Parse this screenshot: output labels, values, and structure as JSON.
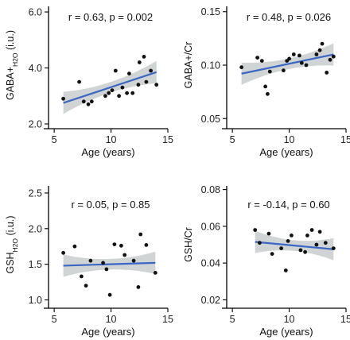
{
  "chart_data": [
    {
      "type": "scatter",
      "stat": "r = 0.63, p = 0.002",
      "xlabel": "Age (years)",
      "ylabel": "GABA+H2O (i.u.)",
      "ylabel_parts": {
        "main": "GABA+",
        "sub": "H2O",
        "unit": " (i.u.)"
      },
      "xlim": [
        4.5,
        15
      ],
      "ylim": [
        2.0,
        6.2
      ],
      "xticks": [
        5,
        10,
        15
      ],
      "yticks": [
        2.0,
        4.0,
        6.0
      ],
      "ytick_labels": [
        "2.0",
        "4.0",
        "6.0"
      ],
      "x": [
        5.8,
        7.2,
        7.6,
        8.0,
        8.3,
        9.5,
        9.8,
        10.1,
        10.4,
        10.7,
        11.0,
        11.4,
        11.6,
        11.9,
        12.4,
        12.5,
        12.9,
        13.1,
        13.5,
        14.0
      ],
      "y": [
        2.9,
        3.5,
        2.8,
        2.7,
        2.8,
        3.0,
        3.1,
        3.2,
        3.9,
        3.0,
        3.3,
        3.1,
        3.8,
        3.1,
        3.4,
        4.2,
        4.4,
        3.5,
        3.9,
        3.4
      ],
      "fit": [
        2.75,
        3.85
      ]
    },
    {
      "type": "scatter",
      "stat": "r = 0.48, p = 0.026",
      "xlabel": "Age (years)",
      "ylabel": "GABA+/Cr",
      "ylabel_parts": {
        "main": "GABA+/Cr",
        "sub": "",
        "unit": ""
      },
      "xlim": [
        4.5,
        15
      ],
      "ylim": [
        0.045,
        0.155
      ],
      "xticks": [
        5,
        10,
        15
      ],
      "yticks": [
        0.05,
        0.1,
        0.15
      ],
      "ytick_labels": [
        "0.05",
        "0.10",
        "0.15"
      ],
      "x": [
        5.8,
        7.2,
        7.6,
        7.9,
        8.1,
        8.3,
        9.5,
        9.8,
        10.0,
        10.4,
        10.9,
        11.1,
        11.5,
        12.4,
        12.7,
        12.9,
        13.3,
        13.6,
        13.9
      ],
      "y": [
        0.098,
        0.107,
        0.104,
        0.08,
        0.073,
        0.094,
        0.095,
        0.104,
        0.106,
        0.11,
        0.109,
        0.102,
        0.1,
        0.11,
        0.114,
        0.12,
        0.093,
        0.105,
        0.108
      ],
      "fit": [
        0.092,
        0.11
      ]
    },
    {
      "type": "scatter",
      "stat": "r = 0.05, p = 0.85",
      "xlabel": "Age (years)",
      "ylabel": "GSHH2O (i.u.)",
      "ylabel_parts": {
        "main": "GSH",
        "sub": "H2O",
        "unit": " (i.u.)"
      },
      "xlim": [
        4.5,
        15
      ],
      "ylim": [
        0.95,
        2.6
      ],
      "xticks": [
        5,
        10,
        15
      ],
      "yticks": [
        1.0,
        1.5,
        2.0,
        2.5
      ],
      "ytick_labels": [
        "1.0",
        "1.5",
        "2.0",
        "2.5"
      ],
      "x": [
        5.8,
        6.8,
        7.4,
        7.8,
        8.2,
        9.3,
        9.6,
        9.9,
        10.3,
        10.9,
        11.2,
        12.0,
        12.4,
        12.6,
        13.1,
        13.9
      ],
      "y": [
        1.66,
        1.75,
        1.33,
        1.2,
        1.55,
        1.52,
        1.43,
        1.07,
        1.78,
        1.76,
        1.63,
        1.55,
        1.18,
        1.92,
        1.77,
        1.38
      ],
      "fit": [
        1.48,
        1.52
      ]
    },
    {
      "type": "scatter",
      "stat": "r = -0.14, p = 0.60",
      "xlabel": "Age (years)",
      "ylabel": "GSH/Cr",
      "ylabel_parts": {
        "main": "GSH/Cr",
        "sub": "",
        "unit": ""
      },
      "xlim": [
        4.5,
        15
      ],
      "ylim": [
        0.018,
        0.082
      ],
      "xticks": [
        5,
        10,
        15
      ],
      "yticks": [
        0.02,
        0.04,
        0.06,
        0.08
      ],
      "ytick_labels": [
        "0.02",
        "0.04",
        "0.06",
        "0.08"
      ],
      "x": [
        7.0,
        7.4,
        8.2,
        8.5,
        9.3,
        9.7,
        9.9,
        10.2,
        11.0,
        11.4,
        11.6,
        12.0,
        12.4,
        12.7,
        13.2,
        13.9
      ],
      "y": [
        0.058,
        0.051,
        0.056,
        0.045,
        0.048,
        0.036,
        0.052,
        0.055,
        0.047,
        0.046,
        0.055,
        0.058,
        0.05,
        0.057,
        0.051,
        0.048
      ],
      "fit": [
        0.0515,
        0.0475
      ]
    }
  ]
}
